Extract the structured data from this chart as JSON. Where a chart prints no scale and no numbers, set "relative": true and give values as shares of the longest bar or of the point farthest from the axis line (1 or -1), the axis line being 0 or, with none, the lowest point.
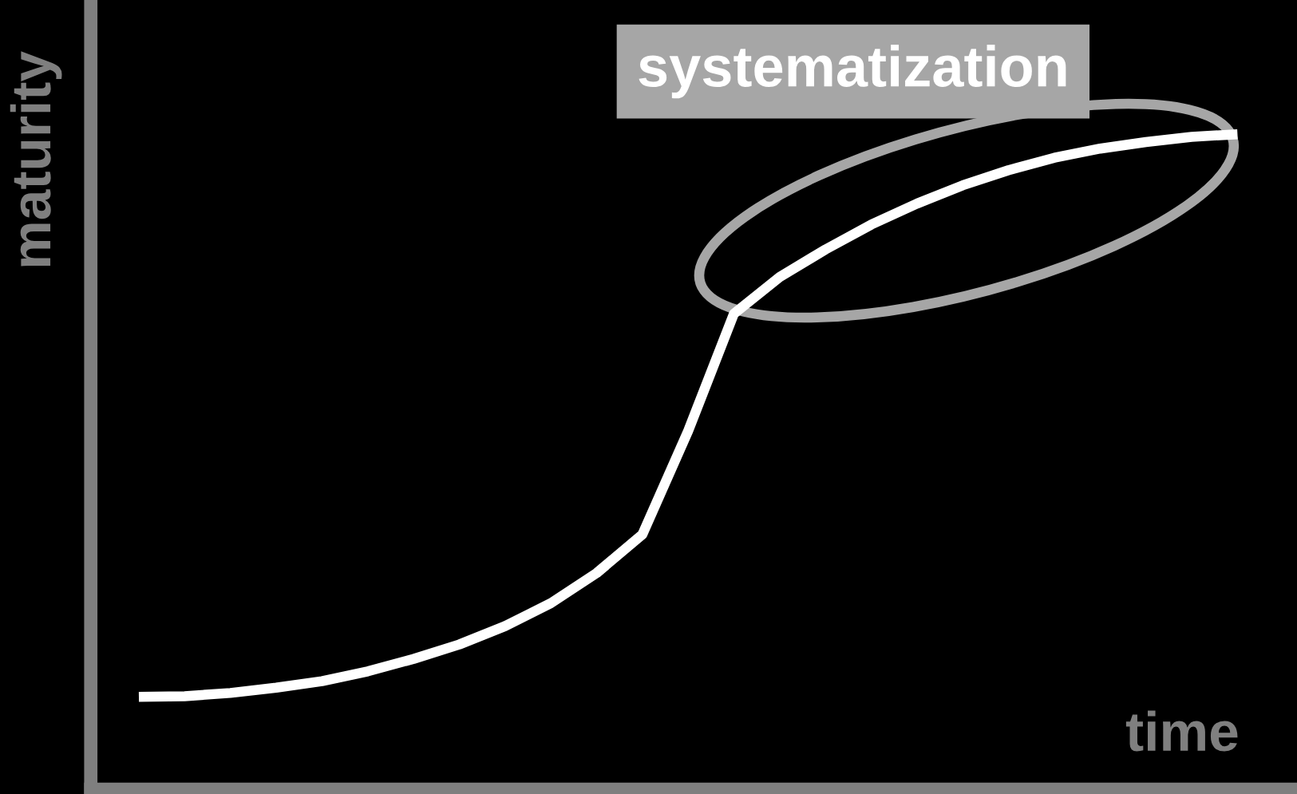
{
  "chart_data": {
    "type": "line",
    "relative": true,
    "xlabel": "time",
    "ylabel": "maturity",
    "legend": false,
    "marker": "none",
    "line_style": "solid",
    "annotations": [
      "systematization"
    ],
    "categories": [
      null,
      null,
      null,
      null,
      null,
      null,
      null,
      null,
      null,
      null,
      null,
      null,
      null,
      null,
      null,
      null,
      null,
      null,
      null,
      null,
      null,
      null,
      null,
      null,
      null
    ],
    "series": [
      {
        "color": "#ffffff",
        "values": [
          0.141,
          0.142,
          0.147,
          0.155,
          0.165,
          0.18,
          0.199,
          0.221,
          0.249,
          0.284,
          0.33,
          0.389,
          0.547,
          0.726,
          0.782,
          0.824,
          0.862,
          0.894,
          0.922,
          0.945,
          0.964,
          0.978,
          0.988,
          0.996,
          1.0
        ]
      }
    ]
  }
}
